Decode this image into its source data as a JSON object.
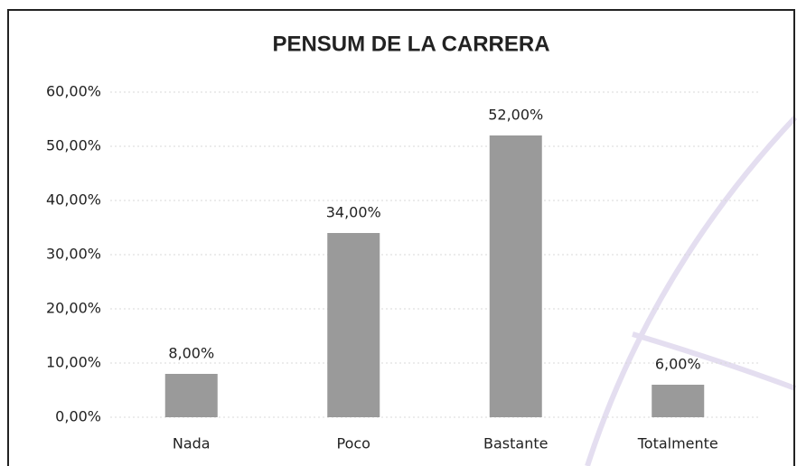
{
  "chart_data": {
    "type": "bar",
    "title": "PENSUM DE LA CARRERA",
    "categories": [
      "Nada",
      "Poco",
      "Bastante",
      "Totalmente"
    ],
    "values": [
      8,
      34,
      52,
      6
    ],
    "value_labels": [
      "8,00%",
      "34,00%",
      "52,00%",
      "6,00%"
    ],
    "color": "#9a9a9a",
    "ylim": [
      0,
      60
    ],
    "yticks": [
      {
        "value": 0,
        "label": "0,00%"
      },
      {
        "value": 10,
        "label": "10,00%"
      },
      {
        "value": 20,
        "label": "20,00%"
      },
      {
        "value": 30,
        "label": "30,00%"
      },
      {
        "value": 40,
        "label": "40,00%"
      },
      {
        "value": 50,
        "label": "50,00%"
      },
      {
        "value": 60,
        "label": "60,00%"
      }
    ],
    "grid": true
  }
}
